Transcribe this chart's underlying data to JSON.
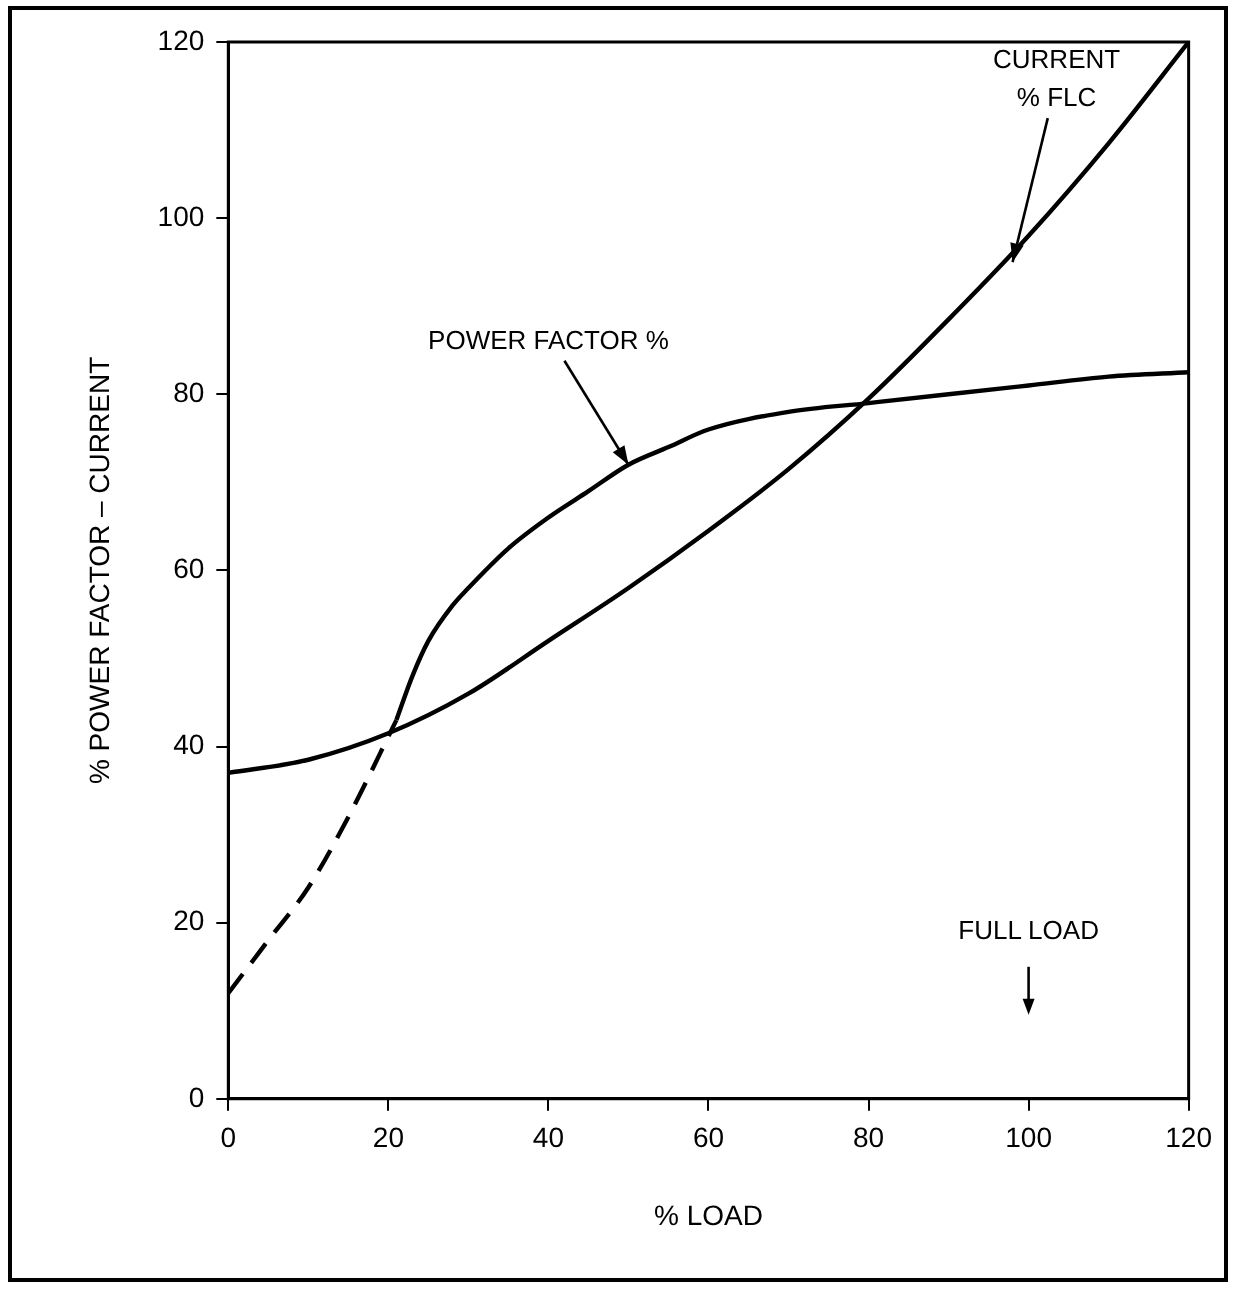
{
  "chart_data": {
    "type": "line",
    "xlabel": "% LOAD",
    "ylabel": "% POWER FACTOR – CURRENT",
    "xlim": [
      0,
      120
    ],
    "xticks": [
      0,
      20,
      40,
      60,
      80,
      100,
      120
    ],
    "ylim": [
      0,
      120
    ],
    "yticks": [
      0,
      20,
      40,
      60,
      80,
      100,
      120
    ],
    "grid": false,
    "legend": false,
    "marker": "none",
    "series": [
      {
        "color": "#000000",
        "line_style": "dashed",
        "x": [
          0,
          5,
          10,
          15,
          21
        ],
        "values": [
          12,
          18,
          24,
          32,
          43
        ]
      },
      {
        "color": "#000000",
        "line_style": "solid",
        "x": [
          21,
          23,
          25,
          28,
          30,
          35,
          40,
          45,
          50,
          55,
          60,
          70,
          80,
          90,
          100,
          110,
          120
        ],
        "values": [
          43,
          48,
          52,
          56,
          58,
          62.5,
          66,
          69,
          72,
          74,
          76,
          78,
          79,
          80,
          81,
          82,
          82.5
        ]
      },
      {
        "color": "#000000",
        "line_style": "solid",
        "x": [
          0,
          10,
          20,
          30,
          40,
          50,
          60,
          70,
          80,
          90,
          100,
          110,
          120
        ],
        "values": [
          37,
          38.5,
          41.5,
          46,
          52,
          58,
          64.5,
          71.5,
          79.5,
          88.5,
          98,
          108.5,
          120
        ]
      }
    ],
    "annotations": [
      {
        "text": "POWER FACTOR %",
        "x": 50,
        "y": 72
      },
      {
        "text": "CURRENT\n% FLC",
        "x": 98,
        "y": 95
      },
      "FULL LOAD"
    ]
  }
}
